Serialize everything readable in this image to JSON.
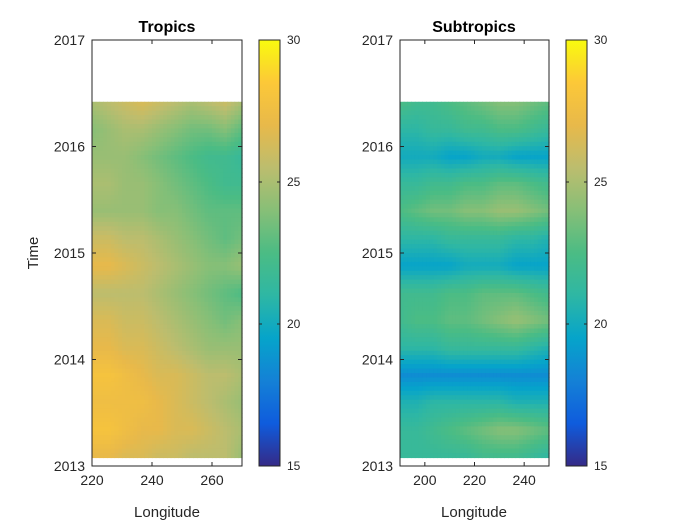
{
  "chart_data": [
    {
      "type": "heatmap",
      "title": "Tropics",
      "xlabel": "Longitude",
      "ylabel": "Time",
      "xlim": [
        220,
        270
      ],
      "ylim": [
        2013,
        2017
      ],
      "xticks": [
        "220",
        "240",
        "260"
      ],
      "yticks": [
        "2013",
        "2014",
        "2015",
        "2016",
        "2017"
      ],
      "data_extent": {
        "x": [
          220,
          270
        ],
        "y": [
          2013.08,
          2016.42
        ]
      },
      "colorbar": {
        "range": [
          15,
          30
        ],
        "ticks": [
          "15",
          "20",
          "25",
          "30"
        ]
      },
      "field": [
        [
          25.0,
          25.5,
          26.0,
          26.5,
          26.0,
          25.5,
          25.0,
          25.5,
          26.0,
          25.0
        ],
        [
          24.0,
          24.5,
          25.0,
          25.0,
          24.5,
          24.0,
          23.5,
          23.5,
          24.0,
          23.0
        ],
        [
          24.5,
          24.5,
          24.5,
          24.0,
          23.5,
          23.0,
          22.5,
          22.0,
          22.0,
          21.5
        ],
        [
          25.0,
          25.0,
          24.5,
          24.5,
          24.0,
          23.5,
          23.0,
          22.5,
          22.0,
          22.0
        ],
        [
          24.5,
          24.5,
          24.5,
          24.5,
          24.0,
          24.0,
          23.5,
          23.0,
          23.0,
          23.0
        ],
        [
          26.0,
          26.0,
          25.5,
          25.5,
          25.0,
          24.5,
          24.0,
          23.5,
          23.0,
          23.5
        ],
        [
          27.0,
          27.0,
          26.5,
          26.0,
          25.5,
          25.0,
          24.5,
          24.0,
          24.0,
          24.5
        ],
        [
          25.5,
          25.5,
          25.5,
          25.5,
          25.0,
          24.5,
          24.0,
          23.5,
          23.0,
          22.5
        ],
        [
          26.5,
          26.5,
          26.0,
          26.0,
          25.5,
          25.0,
          24.5,
          24.0,
          23.5,
          24.0
        ],
        [
          27.0,
          27.0,
          26.5,
          26.5,
          26.0,
          25.5,
          25.0,
          24.5,
          24.5,
          24.5
        ],
        [
          28.0,
          28.0,
          27.5,
          27.0,
          26.5,
          26.5,
          26.0,
          25.5,
          25.5,
          25.0
        ],
        [
          27.5,
          27.5,
          27.5,
          27.5,
          27.0,
          26.5,
          26.0,
          25.5,
          25.0,
          24.5
        ],
        [
          28.0,
          28.0,
          27.5,
          27.0,
          27.0,
          26.5,
          26.5,
          26.0,
          25.5,
          25.0
        ],
        [
          27.0,
          27.0,
          26.5,
          26.5,
          26.0,
          26.0,
          25.5,
          25.5,
          25.5,
          24.5
        ]
      ]
    },
    {
      "type": "heatmap",
      "title": "Subtropics",
      "xlabel": "Longitude",
      "ylabel": "",
      "xlim": [
        190,
        250
      ],
      "ylim": [
        2013,
        2017
      ],
      "xticks": [
        "200",
        "220",
        "240"
      ],
      "yticks": [
        "2013",
        "2014",
        "2015",
        "2016",
        "2017"
      ],
      "data_extent": {
        "x": [
          190,
          250
        ],
        "y": [
          2013.08,
          2016.42
        ]
      },
      "colorbar": {
        "range": [
          15,
          30
        ],
        "ticks": [
          "15",
          "20",
          "25",
          "30"
        ]
      },
      "field": [
        [
          22.5,
          22.0,
          22.0,
          22.5,
          23.0,
          23.5,
          24.0,
          24.0,
          23.5,
          23.0
        ],
        [
          21.0,
          21.0,
          21.5,
          21.5,
          22.0,
          22.0,
          22.5,
          22.5,
          22.0,
          21.5
        ],
        [
          20.0,
          20.0,
          20.0,
          19.5,
          19.5,
          20.0,
          20.0,
          19.5,
          19.5,
          19.5
        ],
        [
          21.5,
          21.5,
          22.0,
          22.0,
          22.5,
          22.5,
          23.0,
          23.0,
          22.5,
          22.0
        ],
        [
          22.5,
          23.0,
          23.5,
          23.5,
          24.0,
          24.0,
          24.5,
          24.5,
          24.0,
          23.5
        ],
        [
          21.0,
          21.0,
          21.0,
          21.5,
          21.5,
          21.5,
          21.5,
          21.0,
          21.0,
          20.5
        ],
        [
          19.5,
          19.5,
          19.5,
          19.5,
          20.0,
          20.0,
          20.0,
          19.5,
          19.5,
          19.5
        ],
        [
          22.0,
          22.0,
          22.0,
          22.5,
          22.5,
          23.0,
          23.0,
          23.0,
          22.5,
          22.0
        ],
        [
          22.0,
          22.5,
          22.5,
          23.0,
          23.0,
          23.5,
          24.0,
          24.5,
          24.0,
          23.5
        ],
        [
          21.0,
          21.0,
          21.0,
          21.5,
          21.5,
          21.5,
          21.5,
          21.5,
          21.0,
          20.5
        ],
        [
          18.5,
          18.5,
          18.5,
          18.5,
          18.5,
          18.5,
          18.5,
          18.5,
          18.5,
          18.5
        ],
        [
          20.5,
          20.5,
          21.0,
          21.0,
          21.0,
          21.0,
          21.0,
          20.5,
          20.5,
          20.5
        ],
        [
          21.5,
          21.5,
          22.0,
          22.5,
          23.0,
          23.5,
          24.0,
          24.0,
          23.5,
          23.0
        ],
        [
          21.5,
          21.5,
          21.5,
          21.5,
          21.5,
          22.0,
          22.0,
          22.0,
          21.5,
          21.0
        ]
      ]
    }
  ]
}
